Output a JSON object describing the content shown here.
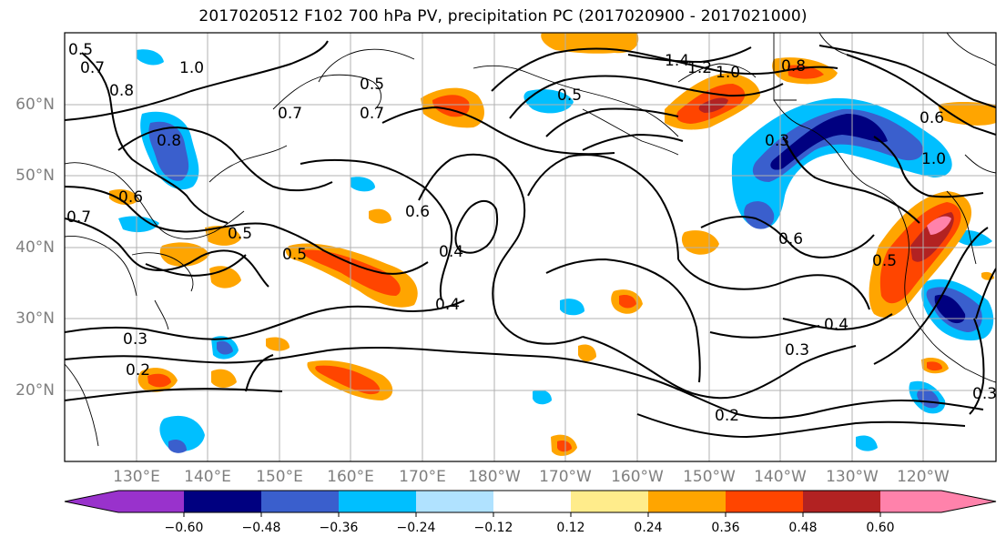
{
  "title": "2017020512 F102 700 hPa PV, precipitation PC (2017020900 - 2017021000)",
  "lat_labels": [
    "60°N",
    "50°N",
    "40°N",
    "30°N",
    "20°N"
  ],
  "lon_labels": [
    "130°E",
    "140°E",
    "150°E",
    "160°E",
    "170°E",
    "180°W",
    "170°W",
    "160°W",
    "150°W",
    "140°W",
    "130°W",
    "120°W"
  ],
  "contour_labels": [
    "0.5",
    "0.7",
    "0.8",
    "1.0",
    "0.8",
    "0.7",
    "0.6",
    "0.7",
    "0.5",
    "0.4",
    "0.6",
    "0.4",
    "0.3",
    "0.2",
    "0.3",
    "0.2",
    "0.4",
    "0.3",
    "0.5",
    "0.6",
    "1.4",
    "1.2",
    "1.0",
    "0.8",
    "0.5",
    "0.6",
    "1.0",
    "0.5",
    "0.3",
    "0.5",
    "0.7"
  ],
  "colorbar": {
    "ticks": [
      "−0.60",
      "−0.48",
      "−0.36",
      "−0.24",
      "−0.12",
      "0.12",
      "0.24",
      "0.36",
      "0.48",
      "0.60"
    ],
    "colors": [
      "#9932cc",
      "#000080",
      "#3a5fcd",
      "#00bfff",
      "#b0e2ff",
      "#ffffff",
      "#ffec8b",
      "#ffa500",
      "#ff4500",
      "#b22222",
      "#ff82ab"
    ]
  },
  "legend_colors": {
    "neg_strong": "#000080",
    "neg_mid": "#3a5fcd",
    "neg_weak": "#00bfff",
    "neg_faint": "#b0e2ff",
    "pos_faint": "#ffec8b",
    "pos_weak": "#ffa500",
    "pos_mid": "#ff4500",
    "pos_strong": "#b22222",
    "pos_max": "#ff82ab"
  }
}
